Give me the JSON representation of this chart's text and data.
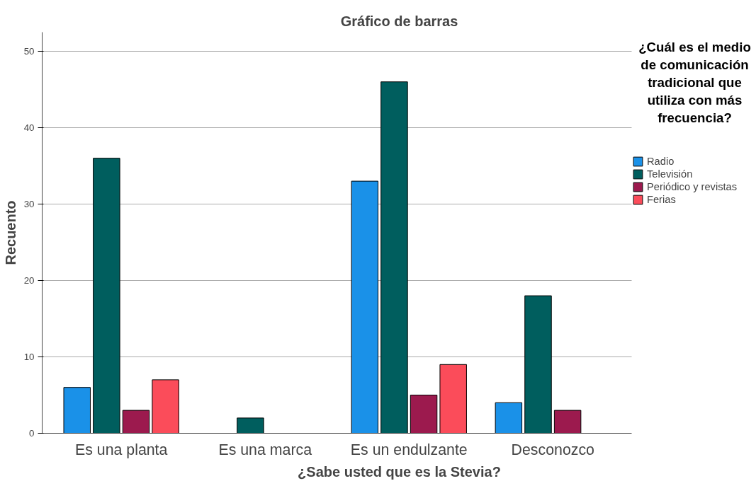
{
  "chart_data": {
    "type": "bar",
    "title": "Gráfico de barras",
    "xlabel": "¿Sabe usted que es la Stevia?",
    "ylabel": "Recuento",
    "legend_title": "¿Cuál es el medio de comunicación tradicional que utiliza con más frecuencia?",
    "categories": [
      "Es una planta",
      "Es una marca",
      "Es un endulzante",
      "Desconozco"
    ],
    "series": [
      {
        "name": "Radio",
        "color": "#1a91e8",
        "values": [
          6,
          null,
          33,
          4
        ]
      },
      {
        "name": "Televisión",
        "color": "#005e5e",
        "values": [
          36,
          2,
          46,
          18
        ]
      },
      {
        "name": "Periódico y revistas",
        "color": "#9c1a4e",
        "values": [
          3,
          null,
          5,
          3
        ]
      },
      {
        "name": "Ferias",
        "color": "#fb4c5a",
        "values": [
          7,
          null,
          9,
          null
        ]
      }
    ],
    "ylim": [
      0,
      52.5
    ],
    "yticks": [
      0,
      10,
      20,
      30,
      40,
      50
    ],
    "grid": "y",
    "legend": "right"
  }
}
